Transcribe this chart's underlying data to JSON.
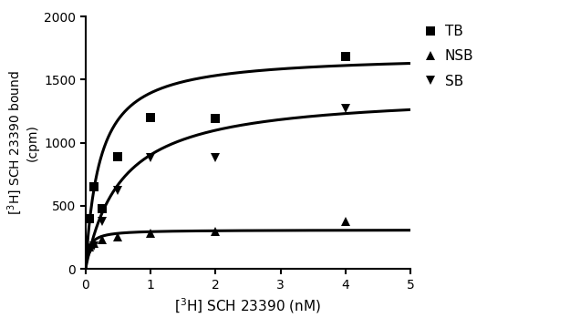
{
  "title": "",
  "xlabel": "[$^{3}$H] SCH 23390 (nM)",
  "ylabel": "[$^{3}$H] SCH 23390 bound\n(cpm)",
  "xlim": [
    0,
    5
  ],
  "ylim": [
    0,
    2000
  ],
  "xticks": [
    0,
    1,
    2,
    3,
    4,
    5
  ],
  "yticks": [
    0,
    500,
    1000,
    1500,
    2000
  ],
  "TB_x": [
    0.0625,
    0.125,
    0.25,
    0.5,
    1.0,
    2.0,
    4.0
  ],
  "TB_y": [
    400,
    650,
    480,
    890,
    1200,
    1190,
    1680
  ],
  "NSB_x": [
    0.0625,
    0.125,
    0.25,
    0.5,
    1.0,
    2.0,
    4.0
  ],
  "NSB_y": [
    175,
    205,
    230,
    255,
    280,
    295,
    375
  ],
  "SB_x": [
    0.0625,
    0.125,
    0.25,
    0.5,
    1.0,
    2.0,
    4.0
  ],
  "SB_y": [
    135,
    185,
    380,
    620,
    880,
    880,
    1270
  ],
  "TB_Bmax": 1700,
  "TB_Kd": 0.22,
  "SB_Bmax": 1400,
  "SB_Kd": 0.55,
  "NSB_Bmax": 310,
  "NSB_Kd": 0.05,
  "color": "#000000",
  "linewidth": 2.2,
  "markersize": 7,
  "legend_labels": [
    "TB",
    "NSB",
    "SB"
  ],
  "background_color": "#ffffff"
}
